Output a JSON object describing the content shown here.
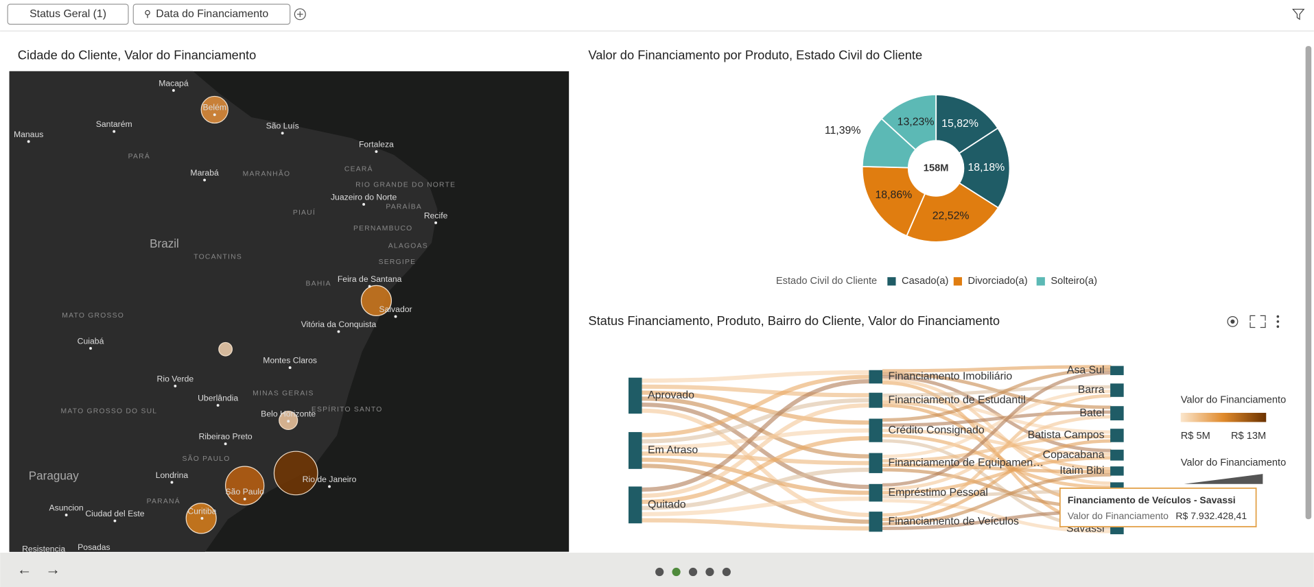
{
  "toolbar": {
    "filters": [
      "Status Geral (1)",
      "Data do Financiamento"
    ]
  },
  "map_panel": {
    "title": "Cidade do Cliente, Valor do Financiamento",
    "labels": [
      "Macapá",
      "Belém",
      "Manaus",
      "Santarém",
      "São Luís",
      "Fortaleza",
      "PARÁ",
      "Marabá",
      "MARANHÃO",
      "CEARÁ",
      "RIO GRANDE DO NORTE",
      "Juazeiro do Norte",
      "PARAÍBA",
      "PIAUÍ",
      "Recife",
      "PERNAMBUCO",
      "Brazil",
      "ALAGOAS",
      "TOCANTINS",
      "SERGIPE",
      "Feira de Santana",
      "BAHIA",
      "Salvador",
      "MATO GROSSO",
      "Vitória da Conquista",
      "Cuiabá",
      "Montes Claros",
      "Rio Verde",
      "MINAS GERAIS",
      "Uberlândia",
      "ESPÍRITO SANTO",
      "MATO GROSSO DO SUL",
      "Belo Horizonte",
      "Ribeirao Preto",
      "SÃO PAULO",
      "Paraguay",
      "Londrina",
      "Rio de Janeiro",
      "São Paulo",
      "PARANÁ",
      "Asuncion",
      "Ciudad del Este",
      "Curitiba",
      "Posadas",
      "Resistencia"
    ]
  },
  "pie_panel": {
    "title": "Valor do Financiamento por Produto, Estado Civil do Cliente",
    "type": "pie",
    "center_label": "158M",
    "legend_title": "Estado Civil do Cliente",
    "series": [
      {
        "name": "Casado(a)",
        "color": "#1f5c66",
        "values": [
          15.82,
          18.18
        ],
        "value_labels": [
          "15,82%",
          "18,18%"
        ]
      },
      {
        "name": "Divorciado(a)",
        "color": "#e07d10",
        "values": [
          22.52,
          18.86
        ],
        "value_labels": [
          "22,52%",
          "18,86%"
        ]
      },
      {
        "name": "Solteiro(a)",
        "color": "#5cb9b5",
        "values": [
          11.39,
          13.23
        ],
        "value_labels": [
          "11,39%",
          "13,23%"
        ]
      }
    ]
  },
  "sankey_panel": {
    "title": "Status Financiamento, Produto, Bairro do Cliente, Valor do Financiamento",
    "sources": [
      "Aprovado",
      "Em Atraso",
      "Quitado"
    ],
    "products": [
      "Financiamento Imobiliário",
      "Financiamento de Estudantil",
      "Crédito Consignado",
      "Financiamento de Equipamen…",
      "Empréstimo Pessoal",
      "Financiamento de Veículos"
    ],
    "neighborhoods": [
      "Asa Sul",
      "Barra",
      "Batel",
      "Batista Campos",
      "Copacabana",
      "Itaim Bibi",
      "Savassi"
    ],
    "legend": {
      "color_title": "Valor do Financiamento",
      "min_label": "R$ 5M",
      "max_label": "R$ 13M",
      "size_title": "Valor do Financiamento"
    },
    "tooltip": {
      "title": "Financiamento de Veículos - Savassi",
      "field": "Valor do Financiamento",
      "value": "R$ 7.932.428,41"
    }
  }
}
